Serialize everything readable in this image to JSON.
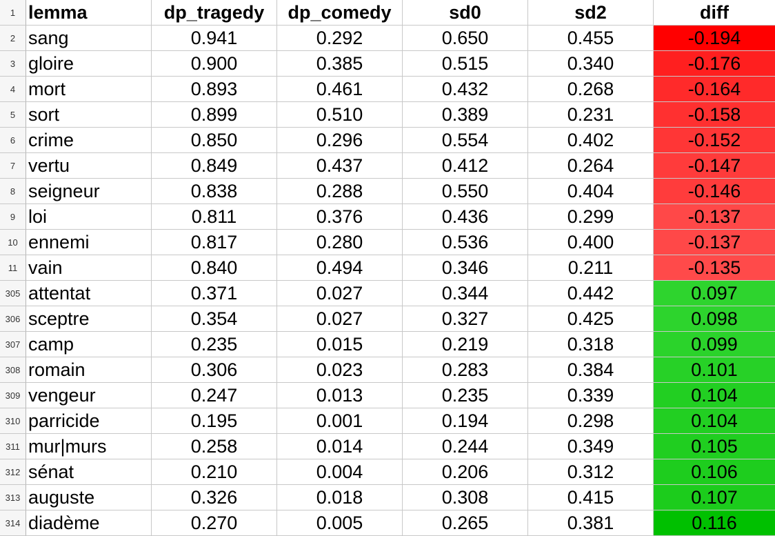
{
  "headers": {
    "rownum": "1",
    "lemma": "lemma",
    "dp_tragedy": "dp_tragedy",
    "dp_comedy": "dp_comedy",
    "sd0": "sd0",
    "sd2": "sd2",
    "diff": "diff"
  },
  "rows": [
    {
      "rownum": "2",
      "lemma": "sang",
      "dp_tragedy": "0.941",
      "dp_comedy": "0.292",
      "sd0": "0.650",
      "sd2": "0.455",
      "diff": "-0.194",
      "diff_color": "#ff0000"
    },
    {
      "rownum": "3",
      "lemma": "gloire",
      "dp_tragedy": "0.900",
      "dp_comedy": "0.385",
      "sd0": "0.515",
      "sd2": "0.340",
      "diff": "-0.176",
      "diff_color": "#ff1f1f"
    },
    {
      "rownum": "4",
      "lemma": "mort",
      "dp_tragedy": "0.893",
      "dp_comedy": "0.461",
      "sd0": "0.432",
      "sd2": "0.268",
      "diff": "-0.164",
      "diff_color": "#ff2a2a"
    },
    {
      "rownum": "5",
      "lemma": "sort",
      "dp_tragedy": "0.899",
      "dp_comedy": "0.510",
      "sd0": "0.389",
      "sd2": "0.231",
      "diff": "-0.158",
      "diff_color": "#ff3030"
    },
    {
      "rownum": "6",
      "lemma": "crime",
      "dp_tragedy": "0.850",
      "dp_comedy": "0.296",
      "sd0": "0.554",
      "sd2": "0.402",
      "diff": "-0.152",
      "diff_color": "#ff3636"
    },
    {
      "rownum": "7",
      "lemma": "vertu",
      "dp_tragedy": "0.849",
      "dp_comedy": "0.437",
      "sd0": "0.412",
      "sd2": "0.264",
      "diff": "-0.147",
      "diff_color": "#ff3b3b"
    },
    {
      "rownum": "8",
      "lemma": "seigneur",
      "dp_tragedy": "0.838",
      "dp_comedy": "0.288",
      "sd0": "0.550",
      "sd2": "0.404",
      "diff": "-0.146",
      "diff_color": "#ff3c3c"
    },
    {
      "rownum": "9",
      "lemma": "loi",
      "dp_tragedy": "0.811",
      "dp_comedy": "0.376",
      "sd0": "0.436",
      "sd2": "0.299",
      "diff": "-0.137",
      "diff_color": "#ff4848"
    },
    {
      "rownum": "10",
      "lemma": "ennemi",
      "dp_tragedy": "0.817",
      "dp_comedy": "0.280",
      "sd0": "0.536",
      "sd2": "0.400",
      "diff": "-0.137",
      "diff_color": "#ff4848"
    },
    {
      "rownum": "11",
      "lemma": "vain",
      "dp_tragedy": "0.840",
      "dp_comedy": "0.494",
      "sd0": "0.346",
      "sd2": "0.211",
      "diff": "-0.135",
      "diff_color": "#ff4a4a"
    },
    {
      "rownum": "305",
      "lemma": "attentat",
      "dp_tragedy": "0.371",
      "dp_comedy": "0.027",
      "sd0": "0.344",
      "sd2": "0.442",
      "diff": "0.097",
      "diff_color": "#2ed42e"
    },
    {
      "rownum": "306",
      "lemma": "sceptre",
      "dp_tragedy": "0.354",
      "dp_comedy": "0.027",
      "sd0": "0.327",
      "sd2": "0.425",
      "diff": "0.098",
      "diff_color": "#2dd42d"
    },
    {
      "rownum": "307",
      "lemma": "camp",
      "dp_tragedy": "0.235",
      "dp_comedy": "0.015",
      "sd0": "0.219",
      "sd2": "0.318",
      "diff": "0.099",
      "diff_color": "#2bd32b"
    },
    {
      "rownum": "308",
      "lemma": "romain",
      "dp_tragedy": "0.306",
      "dp_comedy": "0.023",
      "sd0": "0.283",
      "sd2": "0.384",
      "diff": "0.101",
      "diff_color": "#27d127"
    },
    {
      "rownum": "309",
      "lemma": "vengeur",
      "dp_tragedy": "0.247",
      "dp_comedy": "0.013",
      "sd0": "0.235",
      "sd2": "0.339",
      "diff": "0.104",
      "diff_color": "#22cf22"
    },
    {
      "rownum": "310",
      "lemma": "parricide",
      "dp_tragedy": "0.195",
      "dp_comedy": "0.001",
      "sd0": "0.194",
      "sd2": "0.298",
      "diff": "0.104",
      "diff_color": "#22cf22"
    },
    {
      "rownum": "311",
      "lemma": "mur|murs",
      "dp_tragedy": "0.258",
      "dp_comedy": "0.014",
      "sd0": "0.244",
      "sd2": "0.349",
      "diff": "0.105",
      "diff_color": "#20ce20"
    },
    {
      "rownum": "312",
      "lemma": "sénat",
      "dp_tragedy": "0.210",
      "dp_comedy": "0.004",
      "sd0": "0.206",
      "sd2": "0.312",
      "diff": "0.106",
      "diff_color": "#1ecd1e"
    },
    {
      "rownum": "313",
      "lemma": "auguste",
      "dp_tragedy": "0.326",
      "dp_comedy": "0.018",
      "sd0": "0.308",
      "sd2": "0.415",
      "diff": "0.107",
      "diff_color": "#1ccc1c"
    },
    {
      "rownum": "314",
      "lemma": "diadème",
      "dp_tragedy": "0.270",
      "dp_comedy": "0.005",
      "sd0": "0.265",
      "sd2": "0.381",
      "diff": "0.116",
      "diff_color": "#00c000"
    }
  ]
}
